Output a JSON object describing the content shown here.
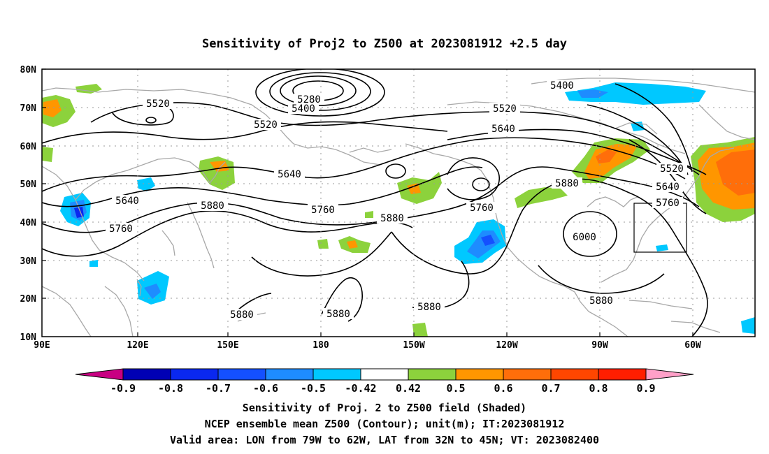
{
  "title": "Sensitivity of Proj2 to Z500 at 2023081912 +2.5 day",
  "lon_ticks": [
    "90E",
    "120E",
    "150E",
    "180",
    "150W",
    "120W",
    "90W",
    "60W"
  ],
  "lat_ticks": [
    "80N",
    "70N",
    "60N",
    "50N",
    "40N",
    "30N",
    "20N",
    "10N"
  ],
  "contour_labels": [
    "5520",
    "5280",
    "5400",
    "5520",
    "5520",
    "5400",
    "5640",
    "5640",
    "5880",
    "5640",
    "5760",
    "5880",
    "5760",
    "5760",
    "6000",
    "5880",
    "5880",
    "5880",
    "5880",
    "5520",
    "5640",
    "5760"
  ],
  "colorbar": {
    "labels": [
      "-0.9",
      "-0.8",
      "-0.7",
      "-0.6",
      "-0.5",
      "-0.42",
      "0.42",
      "0.5",
      "0.6",
      "0.7",
      "0.8",
      "0.9"
    ],
    "colors": [
      "#0000b4",
      "#0a28f0",
      "#1450ff",
      "#1e8cff",
      "#00c8ff",
      "#ffffff",
      "#8cd23c",
      "#ff9600",
      "#ff6e0a",
      "#ff4600",
      "#ff1e00"
    ],
    "low_end_color": "#c80082",
    "high_end_color": "#ffa0c8"
  },
  "captions": [
    "Sensitivity of Proj. 2 to Z500 field (Shaded)",
    "NCEP ensemble mean Z500 (Contour); unit(m); IT:2023081912",
    "Valid area: LON from 79W to 62W, LAT from 32N to 45N; VT: 2023082400"
  ]
}
